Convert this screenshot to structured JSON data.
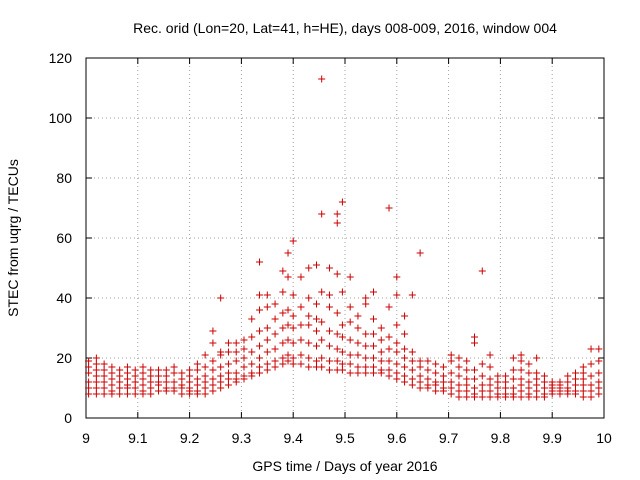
{
  "chart_data": {
    "type": "scatter",
    "title": "Rec. orid (Lon=20, Lat=41, h=HE), days 008-009, 2016, window 004",
    "xlabel": "GPS time / Days of year 2016",
    "ylabel": "STEC from uqrg / TECUs",
    "xlim": [
      9,
      10
    ],
    "ylim": [
      0,
      120
    ],
    "x_ticks": [
      "9",
      "9.1",
      "9.2",
      "9.3",
      "9.4",
      "9.5",
      "9.6",
      "9.7",
      "9.8",
      "9.9",
      "10"
    ],
    "y_ticks": [
      "0",
      "20",
      "40",
      "60",
      "80",
      "100",
      "120"
    ],
    "grid": true,
    "marker": "+",
    "series_color": "#cc0000",
    "points": [
      [
        9.005,
        8
      ],
      [
        9.005,
        10
      ],
      [
        9.005,
        12
      ],
      [
        9.005,
        15
      ],
      [
        9.005,
        17
      ],
      [
        9.005,
        19
      ],
      [
        9.02,
        8
      ],
      [
        9.02,
        10
      ],
      [
        9.02,
        12
      ],
      [
        9.02,
        14
      ],
      [
        9.02,
        16
      ],
      [
        9.02,
        18
      ],
      [
        9.02,
        20
      ],
      [
        9.035,
        8
      ],
      [
        9.035,
        10
      ],
      [
        9.035,
        12
      ],
      [
        9.035,
        14
      ],
      [
        9.035,
        16
      ],
      [
        9.035,
        18
      ],
      [
        9.05,
        8
      ],
      [
        9.05,
        9
      ],
      [
        9.05,
        11
      ],
      [
        9.05,
        13
      ],
      [
        9.05,
        15
      ],
      [
        9.05,
        17
      ],
      [
        9.065,
        8
      ],
      [
        9.065,
        10
      ],
      [
        9.065,
        12
      ],
      [
        9.065,
        14
      ],
      [
        9.065,
        16
      ],
      [
        9.08,
        8
      ],
      [
        9.08,
        10
      ],
      [
        9.08,
        11
      ],
      [
        9.08,
        13
      ],
      [
        9.08,
        15
      ],
      [
        9.08,
        17
      ],
      [
        9.095,
        8
      ],
      [
        9.095,
        10
      ],
      [
        9.095,
        12
      ],
      [
        9.095,
        14
      ],
      [
        9.095,
        16
      ],
      [
        9.11,
        8
      ],
      [
        9.11,
        9
      ],
      [
        9.11,
        11
      ],
      [
        9.11,
        13
      ],
      [
        9.11,
        15
      ],
      [
        9.11,
        17
      ],
      [
        9.125,
        8
      ],
      [
        9.125,
        10
      ],
      [
        9.125,
        12
      ],
      [
        9.125,
        14
      ],
      [
        9.125,
        16
      ],
      [
        9.14,
        9
      ],
      [
        9.14,
        11
      ],
      [
        9.14,
        12
      ],
      [
        9.14,
        14
      ],
      [
        9.14,
        16
      ],
      [
        9.155,
        9
      ],
      [
        9.155,
        10
      ],
      [
        9.155,
        12
      ],
      [
        9.155,
        14
      ],
      [
        9.155,
        16
      ],
      [
        9.17,
        9
      ],
      [
        9.17,
        10
      ],
      [
        9.17,
        12
      ],
      [
        9.17,
        15
      ],
      [
        9.17,
        17
      ],
      [
        9.185,
        8
      ],
      [
        9.185,
        10
      ],
      [
        9.185,
        11
      ],
      [
        9.185,
        13
      ],
      [
        9.185,
        15
      ],
      [
        9.2,
        8
      ],
      [
        9.2,
        9
      ],
      [
        9.2,
        10
      ],
      [
        9.2,
        12
      ],
      [
        9.2,
        14
      ],
      [
        9.2,
        16
      ],
      [
        9.215,
        8
      ],
      [
        9.215,
        9
      ],
      [
        9.215,
        11
      ],
      [
        9.215,
        13
      ],
      [
        9.215,
        16
      ],
      [
        9.215,
        18
      ],
      [
        9.23,
        8
      ],
      [
        9.23,
        10
      ],
      [
        9.23,
        12
      ],
      [
        9.23,
        14
      ],
      [
        9.23,
        17
      ],
      [
        9.23,
        21
      ],
      [
        9.245,
        9
      ],
      [
        9.245,
        11
      ],
      [
        9.245,
        13
      ],
      [
        9.245,
        16
      ],
      [
        9.245,
        19
      ],
      [
        9.245,
        25
      ],
      [
        9.245,
        29
      ],
      [
        9.26,
        10
      ],
      [
        9.26,
        12
      ],
      [
        9.26,
        14
      ],
      [
        9.26,
        17
      ],
      [
        9.26,
        21
      ],
      [
        9.26,
        22
      ],
      [
        9.26,
        40
      ],
      [
        9.275,
        11
      ],
      [
        9.275,
        13
      ],
      [
        9.275,
        15
      ],
      [
        9.275,
        18
      ],
      [
        9.275,
        22
      ],
      [
        9.275,
        25
      ],
      [
        9.29,
        12
      ],
      [
        9.29,
        13
      ],
      [
        9.29,
        15
      ],
      [
        9.29,
        19
      ],
      [
        9.29,
        22
      ],
      [
        9.29,
        25
      ],
      [
        9.305,
        13
      ],
      [
        9.305,
        14
      ],
      [
        9.305,
        17
      ],
      [
        9.305,
        20
      ],
      [
        9.305,
        23
      ],
      [
        9.305,
        26
      ],
      [
        9.32,
        14
      ],
      [
        9.32,
        15
      ],
      [
        9.32,
        18
      ],
      [
        9.32,
        22
      ],
      [
        9.32,
        27
      ],
      [
        9.32,
        33
      ],
      [
        9.335,
        15
      ],
      [
        9.335,
        17
      ],
      [
        9.335,
        20
      ],
      [
        9.335,
        24
      ],
      [
        9.335,
        29
      ],
      [
        9.335,
        36
      ],
      [
        9.335,
        41
      ],
      [
        9.335,
        52
      ],
      [
        9.35,
        16
      ],
      [
        9.35,
        18
      ],
      [
        9.35,
        22
      ],
      [
        9.35,
        26
      ],
      [
        9.35,
        30
      ],
      [
        9.35,
        37
      ],
      [
        9.35,
        41
      ],
      [
        9.365,
        17
      ],
      [
        9.365,
        19
      ],
      [
        9.365,
        23
      ],
      [
        9.365,
        28
      ],
      [
        9.365,
        33
      ],
      [
        9.365,
        38
      ],
      [
        9.38,
        18
      ],
      [
        9.38,
        20
      ],
      [
        9.38,
        25
      ],
      [
        9.38,
        30
      ],
      [
        9.38,
        35
      ],
      [
        9.38,
        42
      ],
      [
        9.38,
        49
      ],
      [
        9.39,
        19
      ],
      [
        9.39,
        21
      ],
      [
        9.39,
        26
      ],
      [
        9.39,
        31
      ],
      [
        9.39,
        36
      ],
      [
        9.39,
        47
      ],
      [
        9.39,
        55
      ],
      [
        9.4,
        18
      ],
      [
        9.4,
        20
      ],
      [
        9.4,
        25
      ],
      [
        9.4,
        30
      ],
      [
        9.4,
        34
      ],
      [
        9.4,
        41
      ],
      [
        9.4,
        59
      ],
      [
        9.415,
        18
      ],
      [
        9.415,
        21
      ],
      [
        9.415,
        26
      ],
      [
        9.415,
        31
      ],
      [
        9.415,
        37
      ],
      [
        9.415,
        47
      ],
      [
        9.43,
        17
      ],
      [
        9.43,
        20
      ],
      [
        9.43,
        25
      ],
      [
        9.43,
        31
      ],
      [
        9.43,
        34
      ],
      [
        9.43,
        40
      ],
      [
        9.43,
        50
      ],
      [
        9.445,
        17
      ],
      [
        9.445,
        19
      ],
      [
        9.445,
        24
      ],
      [
        9.445,
        29
      ],
      [
        9.445,
        33
      ],
      [
        9.445,
        38
      ],
      [
        9.445,
        51
      ],
      [
        9.455,
        17
      ],
      [
        9.455,
        20
      ],
      [
        9.455,
        26
      ],
      [
        9.455,
        32
      ],
      [
        9.455,
        42
      ],
      [
        9.455,
        68
      ],
      [
        9.455,
        113
      ],
      [
        9.47,
        16
      ],
      [
        9.47,
        19
      ],
      [
        9.47,
        24
      ],
      [
        9.47,
        29
      ],
      [
        9.47,
        37
      ],
      [
        9.47,
        41
      ],
      [
        9.47,
        50
      ],
      [
        9.485,
        16
      ],
      [
        9.485,
        19
      ],
      [
        9.485,
        23
      ],
      [
        9.485,
        28
      ],
      [
        9.485,
        35
      ],
      [
        9.485,
        48
      ],
      [
        9.485,
        65
      ],
      [
        9.485,
        68
      ],
      [
        9.495,
        16
      ],
      [
        9.495,
        18
      ],
      [
        9.495,
        22
      ],
      [
        9.495,
        27
      ],
      [
        9.495,
        31
      ],
      [
        9.495,
        42
      ],
      [
        9.495,
        72
      ],
      [
        9.51,
        15
      ],
      [
        9.51,
        18
      ],
      [
        9.51,
        21
      ],
      [
        9.51,
        26
      ],
      [
        9.51,
        32
      ],
      [
        9.51,
        37
      ],
      [
        9.51,
        47
      ],
      [
        9.525,
        15
      ],
      [
        9.525,
        17
      ],
      [
        9.525,
        21
      ],
      [
        9.525,
        25
      ],
      [
        9.525,
        30
      ],
      [
        9.525,
        34
      ],
      [
        9.54,
        15
      ],
      [
        9.54,
        17
      ],
      [
        9.54,
        20
      ],
      [
        9.54,
        24
      ],
      [
        9.54,
        28
      ],
      [
        9.54,
        38
      ],
      [
        9.54,
        40
      ],
      [
        9.555,
        15
      ],
      [
        9.555,
        17
      ],
      [
        9.555,
        20
      ],
      [
        9.555,
        24
      ],
      [
        9.555,
        28
      ],
      [
        9.555,
        33
      ],
      [
        9.555,
        42
      ],
      [
        9.57,
        15
      ],
      [
        9.57,
        16
      ],
      [
        9.57,
        19
      ],
      [
        9.57,
        22
      ],
      [
        9.57,
        26
      ],
      [
        9.57,
        30
      ],
      [
        9.585,
        14
      ],
      [
        9.585,
        16
      ],
      [
        9.585,
        19
      ],
      [
        9.585,
        23
      ],
      [
        9.585,
        27
      ],
      [
        9.585,
        37
      ],
      [
        9.585,
        70
      ],
      [
        9.6,
        13
      ],
      [
        9.6,
        15
      ],
      [
        9.6,
        18
      ],
      [
        9.6,
        22
      ],
      [
        9.6,
        25
      ],
      [
        9.6,
        31
      ],
      [
        9.6,
        41
      ],
      [
        9.6,
        47
      ],
      [
        9.615,
        12
      ],
      [
        9.615,
        14
      ],
      [
        9.615,
        17
      ],
      [
        9.615,
        20
      ],
      [
        9.615,
        23
      ],
      [
        9.615,
        28
      ],
      [
        9.615,
        34
      ],
      [
        9.63,
        11
      ],
      [
        9.63,
        13
      ],
      [
        9.63,
        16
      ],
      [
        9.63,
        19
      ],
      [
        9.63,
        22
      ],
      [
        9.63,
        41
      ],
      [
        9.645,
        10
      ],
      [
        9.645,
        12
      ],
      [
        9.645,
        14
      ],
      [
        9.645,
        17
      ],
      [
        9.645,
        19
      ],
      [
        9.645,
        55
      ],
      [
        9.66,
        10
      ],
      [
        9.66,
        11
      ],
      [
        9.66,
        13
      ],
      [
        9.66,
        16
      ],
      [
        9.66,
        19
      ],
      [
        9.675,
        9
      ],
      [
        9.675,
        11
      ],
      [
        9.675,
        12
      ],
      [
        9.675,
        15
      ],
      [
        9.675,
        18
      ],
      [
        9.69,
        9
      ],
      [
        9.69,
        10
      ],
      [
        9.69,
        12
      ],
      [
        9.69,
        14
      ],
      [
        9.69,
        17
      ],
      [
        9.705,
        8
      ],
      [
        9.705,
        10
      ],
      [
        9.705,
        12
      ],
      [
        9.705,
        15
      ],
      [
        9.705,
        19
      ],
      [
        9.705,
        21
      ],
      [
        9.72,
        7
      ],
      [
        9.72,
        9
      ],
      [
        9.72,
        11
      ],
      [
        9.72,
        14
      ],
      [
        9.72,
        17
      ],
      [
        9.72,
        20
      ],
      [
        9.735,
        7
      ],
      [
        9.735,
        9
      ],
      [
        9.735,
        11
      ],
      [
        9.735,
        13
      ],
      [
        9.735,
        16
      ],
      [
        9.735,
        19
      ],
      [
        9.75,
        7
      ],
      [
        9.75,
        8
      ],
      [
        9.75,
        10
      ],
      [
        9.75,
        13
      ],
      [
        9.75,
        16
      ],
      [
        9.75,
        25
      ],
      [
        9.75,
        27
      ],
      [
        9.765,
        7
      ],
      [
        9.765,
        9
      ],
      [
        9.765,
        11
      ],
      [
        9.765,
        14
      ],
      [
        9.765,
        18
      ],
      [
        9.765,
        49
      ],
      [
        9.78,
        7
      ],
      [
        9.78,
        9
      ],
      [
        9.78,
        11
      ],
      [
        9.78,
        13
      ],
      [
        9.78,
        17
      ],
      [
        9.78,
        21
      ],
      [
        9.795,
        7
      ],
      [
        9.795,
        8
      ],
      [
        9.795,
        10
      ],
      [
        9.795,
        12
      ],
      [
        9.795,
        14
      ],
      [
        9.81,
        7
      ],
      [
        9.81,
        8
      ],
      [
        9.81,
        10
      ],
      [
        9.81,
        12
      ],
      [
        9.81,
        14
      ],
      [
        9.825,
        7
      ],
      [
        9.825,
        8
      ],
      [
        9.825,
        10
      ],
      [
        9.825,
        13
      ],
      [
        9.825,
        16
      ],
      [
        9.825,
        20
      ],
      [
        9.84,
        7
      ],
      [
        9.84,
        9
      ],
      [
        9.84,
        11
      ],
      [
        9.84,
        13
      ],
      [
        9.84,
        16
      ],
      [
        9.84,
        19
      ],
      [
        9.84,
        21
      ],
      [
        9.855,
        7
      ],
      [
        9.855,
        8
      ],
      [
        9.855,
        10
      ],
      [
        9.855,
        12
      ],
      [
        9.855,
        15
      ],
      [
        9.855,
        18
      ],
      [
        9.87,
        7
      ],
      [
        9.87,
        9
      ],
      [
        9.87,
        11
      ],
      [
        9.87,
        13
      ],
      [
        9.87,
        15
      ],
      [
        9.87,
        20
      ],
      [
        9.885,
        7
      ],
      [
        9.885,
        8
      ],
      [
        9.885,
        10
      ],
      [
        9.885,
        12
      ],
      [
        9.885,
        14
      ],
      [
        9.9,
        8
      ],
      [
        9.9,
        9
      ],
      [
        9.9,
        10
      ],
      [
        9.9,
        11
      ],
      [
        9.9,
        12
      ],
      [
        9.915,
        8
      ],
      [
        9.915,
        9
      ],
      [
        9.915,
        10
      ],
      [
        9.915,
        11
      ],
      [
        9.915,
        12
      ],
      [
        9.93,
        8
      ],
      [
        9.93,
        9
      ],
      [
        9.93,
        10
      ],
      [
        9.93,
        12
      ],
      [
        9.93,
        14
      ],
      [
        9.945,
        8
      ],
      [
        9.945,
        9
      ],
      [
        9.945,
        11
      ],
      [
        9.945,
        13
      ],
      [
        9.945,
        15
      ],
      [
        9.96,
        7
      ],
      [
        9.96,
        9
      ],
      [
        9.96,
        11
      ],
      [
        9.96,
        13
      ],
      [
        9.96,
        15
      ],
      [
        9.96,
        17
      ],
      [
        9.975,
        7
      ],
      [
        9.975,
        9
      ],
      [
        9.975,
        11
      ],
      [
        9.975,
        14
      ],
      [
        9.975,
        18
      ],
      [
        9.975,
        23
      ],
      [
        9.99,
        8
      ],
      [
        9.99,
        10
      ],
      [
        9.99,
        12
      ],
      [
        9.99,
        15
      ],
      [
        9.99,
        19
      ],
      [
        9.99,
        23
      ]
    ]
  }
}
